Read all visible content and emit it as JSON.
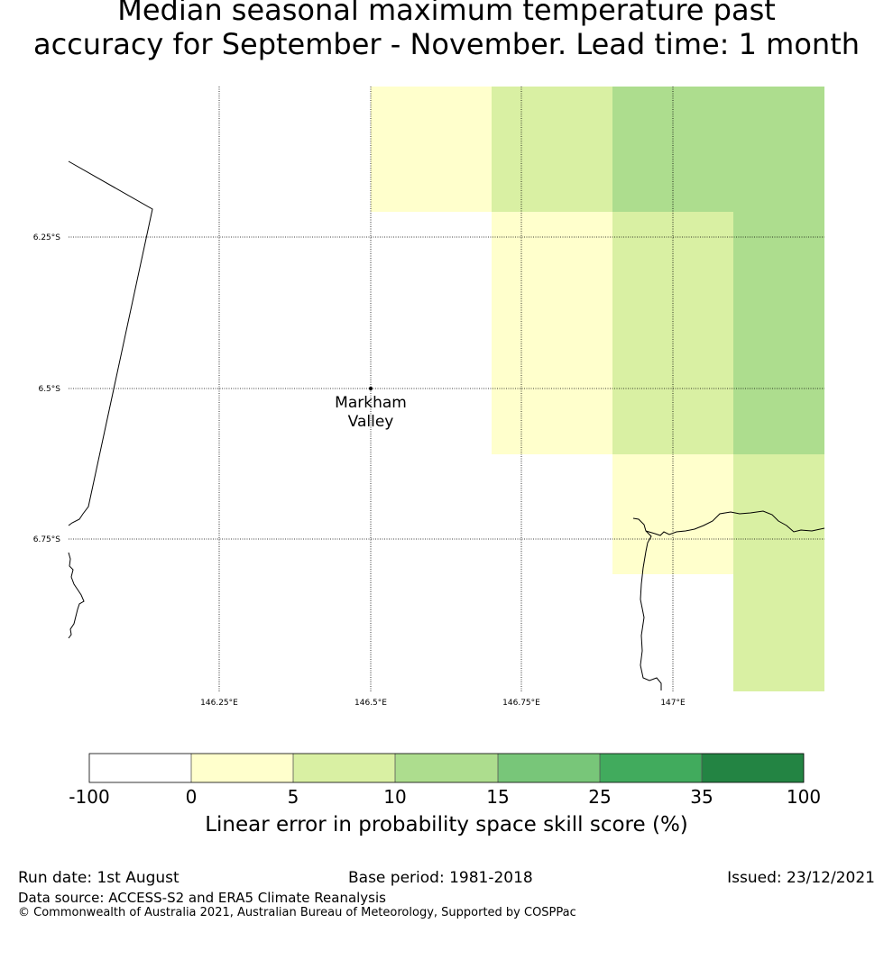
{
  "title": {
    "line1": "Median seasonal maximum temperature past",
    "line2": "accuracy for September - November. Lead time: 1 month"
  },
  "map": {
    "lat_ticks": [
      "6.25°S",
      "6.5°S",
      "6.75°S"
    ],
    "lon_ticks": [
      "146.25°E",
      "146.5°E",
      "146.75°E",
      "147°E"
    ],
    "place": {
      "name_line1": "Markham",
      "name_line2": "Valley"
    },
    "colors": {
      "yellow": "#ffffcc",
      "light_green": "#d9f0a3",
      "mid_green": "#addd8e"
    }
  },
  "colorbar": {
    "labels": [
      "-100",
      "0",
      "5",
      "10",
      "15",
      "25",
      "35",
      "100"
    ],
    "colors": [
      "#ffffff",
      "#ffffcc",
      "#d9f0a3",
      "#addd8e",
      "#78c679",
      "#41ab5d",
      "#238443"
    ],
    "title": "Linear error in probability space skill score (%)"
  },
  "footer": {
    "run_date": "Run date: 1st August",
    "base_period": "Base period: 1981-2018",
    "issued": "Issued: 23/12/2021",
    "data_source": "Data source: ACCESS-S2 and ERA5 Climate Reanalysis",
    "copyright": "© Commonwealth of Australia 2021, Australian Bureau of Meteorology, Supported by COSPPac"
  }
}
